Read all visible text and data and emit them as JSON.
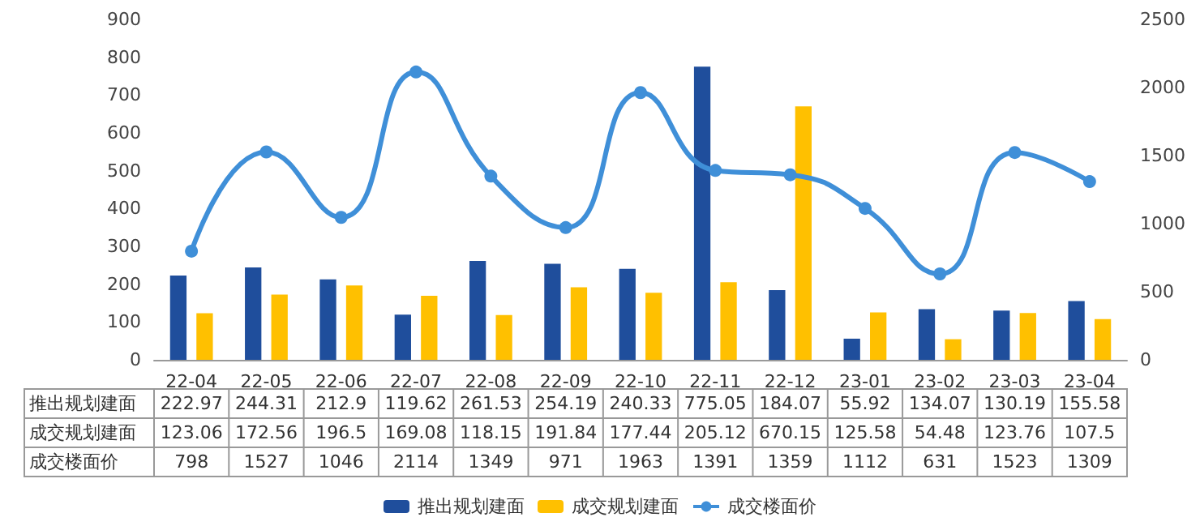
{
  "chart_data": {
    "type": "bar",
    "categories": [
      "22-04",
      "22-05",
      "22-06",
      "22-07",
      "22-08",
      "22-09",
      "22-10",
      "22-11",
      "22-12",
      "23-01",
      "23-02",
      "23-03",
      "23-04"
    ],
    "series": [
      {
        "name": "推出规划建面",
        "color": "#1f4e9c",
        "values": [
          222.97,
          244.31,
          212.9,
          119.62,
          261.53,
          254.19,
          240.33,
          775.05,
          184.07,
          55.92,
          134.07,
          130.19,
          155.58
        ]
      },
      {
        "name": "成交规划建面",
        "color": "#ffc000",
        "values": [
          123.06,
          172.56,
          196.5,
          169.08,
          118.15,
          191.84,
          177.44,
          205.12,
          670.15,
          125.58,
          54.48,
          123.76,
          107.5
        ]
      },
      {
        "name": "成交楼面价",
        "type": "line",
        "axis": "y2",
        "color": "#3f8fd8",
        "values": [
          798,
          1527,
          1046,
          2114,
          1349,
          971,
          1963,
          1391,
          1359,
          1112,
          631,
          1523,
          1309
        ]
      }
    ],
    "ylim": [
      0,
      900
    ],
    "yticks": [
      0,
      100,
      200,
      300,
      400,
      500,
      600,
      700,
      800,
      900
    ],
    "y2lim": [
      0,
      2500
    ],
    "y2ticks": [
      0,
      500,
      1000,
      1500,
      2000,
      2500
    ],
    "data_labels": true,
    "legend": "bottom",
    "grid": false,
    "marker": "circle"
  }
}
